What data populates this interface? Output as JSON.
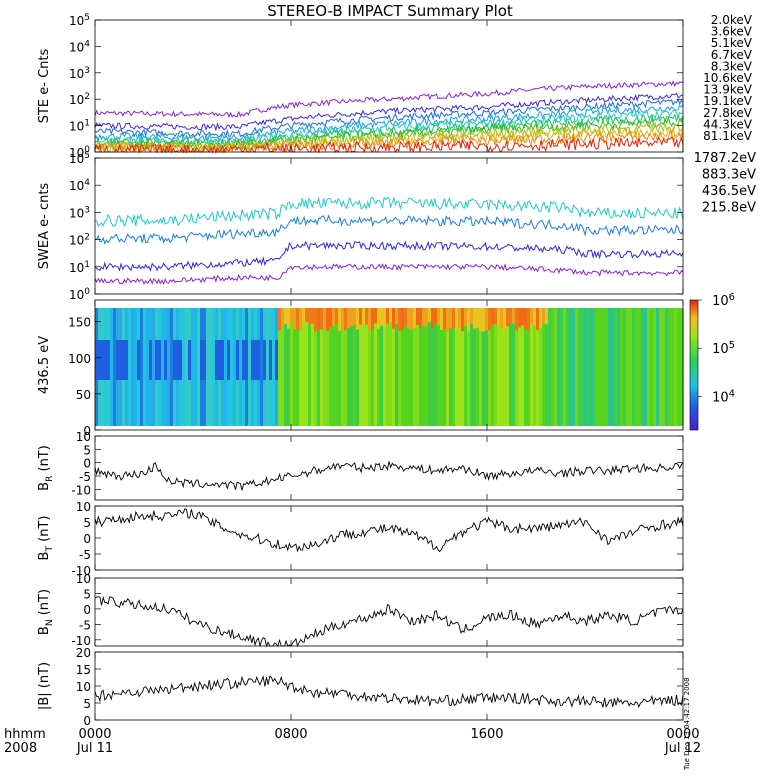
{
  "title": "STEREO-B IMPACT Summary Plot",
  "side_stamp": "Tue Dec 13 04:42:17 2008",
  "chart_data": [
    {
      "type": "line",
      "panel": "ste",
      "ylabel": "STE e- Cnts",
      "yscale": "log",
      "ylim": [
        1,
        100000
      ],
      "yticks": [
        {
          "v": 1,
          "b": "10",
          "e": "0"
        },
        {
          "v": 10,
          "b": "10",
          "e": "1"
        },
        {
          "v": 100,
          "b": "10",
          "e": "2"
        },
        {
          "v": 1000,
          "b": "10",
          "e": "3"
        },
        {
          "v": 10000,
          "b": "10",
          "e": "4"
        },
        {
          "v": 100000,
          "b": "10",
          "e": "5"
        }
      ],
      "series": [
        {
          "name": "2.0keV",
          "color": "#8b23c9",
          "x": [
            0,
            4,
            6,
            8,
            12,
            16,
            20,
            24
          ],
          "y": [
            30,
            27,
            26,
            60,
            100,
            160,
            300,
            400
          ]
        },
        {
          "name": "3.6keV",
          "color": "#3b2bd6",
          "x": [
            0,
            4,
            6,
            8,
            12,
            16,
            20,
            24
          ],
          "y": [
            10,
            9,
            9,
            18,
            35,
            50,
            90,
            140
          ]
        },
        {
          "name": "5.1keV",
          "color": "#1c6bd8",
          "x": [
            0,
            4,
            6,
            8,
            12,
            16,
            20,
            24
          ],
          "y": [
            6,
            5,
            5,
            10,
            20,
            30,
            50,
            80
          ]
        },
        {
          "name": "6.7keV",
          "color": "#1aa0de",
          "x": [
            0,
            4,
            6,
            8,
            12,
            16,
            20,
            24
          ],
          "y": [
            4,
            3.5,
            3.5,
            6,
            12,
            18,
            30,
            50
          ]
        },
        {
          "name": "8.3keV",
          "color": "#20c9c0",
          "x": [
            0,
            4,
            6,
            8,
            12,
            16,
            20,
            24
          ],
          "y": [
            3,
            2.6,
            2.6,
            4.5,
            8,
            12,
            20,
            30
          ]
        },
        {
          "name": "10.6keV",
          "color": "#1fc46a",
          "x": [
            0,
            4,
            6,
            8,
            12,
            16,
            20,
            24
          ],
          "y": [
            2.5,
            2.2,
            2.2,
            3.5,
            6,
            9,
            14,
            20
          ]
        },
        {
          "name": "13.9keV",
          "color": "#33b91e",
          "x": [
            0,
            4,
            6,
            8,
            12,
            16,
            20,
            24
          ],
          "y": [
            2,
            1.9,
            1.9,
            2.8,
            4.5,
            7,
            10,
            14
          ]
        },
        {
          "name": "19.1keV",
          "color": "#a6c31a",
          "x": [
            0,
            4,
            6,
            8,
            12,
            16,
            20,
            24
          ],
          "y": [
            1.8,
            1.7,
            1.7,
            2.3,
            3.5,
            5,
            7,
            9
          ]
        },
        {
          "name": "27.8keV",
          "color": "#d9b616",
          "x": [
            0,
            4,
            6,
            8,
            12,
            16,
            20,
            24
          ],
          "y": [
            1.6,
            1.5,
            1.5,
            1.9,
            2.7,
            3.6,
            5,
            6
          ]
        },
        {
          "name": "44.3keV",
          "color": "#ee8a14",
          "x": [
            0,
            4,
            6,
            8,
            12,
            16,
            20,
            24
          ],
          "y": [
            1.4,
            1.3,
            1.4,
            1.6,
            2.1,
            2.6,
            3.4,
            4
          ]
        },
        {
          "name": "81.1keV",
          "color": "#e0250f",
          "x": [
            0,
            4,
            6,
            8,
            12,
            16,
            20,
            24
          ],
          "y": [
            1.2,
            1.15,
            1.3,
            1.3,
            1.5,
            1.7,
            2,
            2.2
          ]
        }
      ]
    },
    {
      "type": "line",
      "panel": "swea",
      "ylabel": "SWEA e- cnts",
      "yscale": "log",
      "ylim": [
        1,
        100000
      ],
      "yticks": [
        {
          "v": 1,
          "b": "10",
          "e": "0"
        },
        {
          "v": 10,
          "b": "10",
          "e": "1"
        },
        {
          "v": 100,
          "b": "10",
          "e": "2"
        },
        {
          "v": 1000,
          "b": "10",
          "e": "3"
        },
        {
          "v": 10000,
          "b": "10",
          "e": "4"
        },
        {
          "v": 100000,
          "b": "10",
          "e": "5"
        }
      ],
      "series": [
        {
          "name": "1787.2eV",
          "color": "#8b23c9",
          "x": [
            0,
            3,
            6,
            7.5,
            8,
            12,
            16,
            19.5,
            20,
            24
          ],
          "y": [
            3,
            3,
            4,
            4,
            10,
            10,
            10,
            7,
            6,
            6
          ]
        },
        {
          "name": "883.3eV",
          "color": "#2a2bd6",
          "x": [
            0,
            3,
            6,
            7.5,
            8,
            12,
            16,
            19.5,
            20,
            24
          ],
          "y": [
            10,
            10,
            14,
            16,
            60,
            60,
            55,
            40,
            30,
            30
          ]
        },
        {
          "name": "436.5eV",
          "color": "#1f7fd8",
          "x": [
            0,
            3,
            6,
            7.5,
            8,
            12,
            16,
            19.5,
            20,
            24
          ],
          "y": [
            110,
            110,
            170,
            200,
            500,
            500,
            450,
            320,
            220,
            220
          ]
        },
        {
          "name": "215.8eV",
          "color": "#24c9c4",
          "x": [
            0,
            3,
            6,
            7.5,
            8,
            12,
            16,
            19.5,
            20,
            24
          ],
          "y": [
            500,
            500,
            800,
            900,
            2100,
            2200,
            1900,
            1400,
            900,
            900
          ]
        }
      ]
    },
    {
      "type": "heatmap",
      "panel": "spectrogram",
      "ylabel": "436.5 eV",
      "ylim": [
        0,
        180
      ],
      "yticks": [
        0,
        50,
        100,
        150
      ],
      "colorbar": {
        "scale": "log",
        "range": [
          2000,
          1000000
        ],
        "ticks": [
          {
            "v": 10000,
            "b": "10",
            "e": "4"
          },
          {
            "v": 100000,
            "b": "10",
            "e": "5"
          },
          {
            "v": 1000000,
            "b": "10",
            "e": "6"
          }
        ]
      },
      "regions": [
        {
          "x": [
            0,
            7.5
          ],
          "level": "low"
        },
        {
          "x": [
            7.5,
            18.5
          ],
          "level": "high"
        },
        {
          "x": [
            18.5,
            24
          ],
          "level": "medium"
        }
      ]
    },
    {
      "type": "line",
      "panel": "br",
      "ylabel": "B",
      "ylabel_sub": "R",
      "ylabel_unit": "(nT)",
      "ylim": [
        -14,
        10
      ],
      "yticks": [
        -10,
        -5,
        0,
        5,
        10
      ],
      "series": [
        {
          "name": "BR",
          "color": "#000000",
          "x": [
            0,
            1,
            2,
            2.5,
            3,
            4,
            5,
            6,
            7,
            8,
            9,
            10,
            11,
            12,
            13,
            14,
            15,
            16,
            17,
            18,
            19,
            20,
            21,
            22,
            23,
            24
          ],
          "y": [
            -3,
            -5,
            -4,
            -1,
            -7,
            -8,
            -8,
            -9,
            -7,
            -5,
            -3,
            -1,
            -2,
            -1,
            -2,
            -3,
            -2,
            -5,
            -4,
            -3,
            -4,
            -3,
            -3,
            -2,
            -2,
            -1
          ]
        }
      ]
    },
    {
      "type": "line",
      "panel": "bt",
      "ylabel": "B",
      "ylabel_sub": "T",
      "ylabel_unit": "(nT)",
      "ylim": [
        -10,
        10
      ],
      "yticks": [
        -10,
        -5,
        0,
        5,
        10
      ],
      "series": [
        {
          "name": "BT",
          "color": "#000000",
          "x": [
            0,
            1,
            2,
            3,
            4,
            5,
            6,
            7,
            8,
            9,
            10,
            11,
            12,
            13,
            14,
            15,
            16,
            17,
            18,
            19,
            20,
            21,
            22,
            23,
            24
          ],
          "y": [
            5,
            6,
            7,
            7,
            8,
            4,
            1,
            -1,
            -3,
            -2,
            1,
            2,
            3,
            1,
            -3,
            2,
            5,
            3,
            3,
            4,
            5,
            -1,
            2,
            4,
            5
          ]
        }
      ]
    },
    {
      "type": "line",
      "panel": "bn",
      "ylabel": "B",
      "ylabel_sub": "N",
      "ylabel_unit": "(nT)",
      "ylim": [
        -12,
        10
      ],
      "yticks": [
        -10,
        -5,
        0,
        5,
        10
      ],
      "series": [
        {
          "name": "BN",
          "color": "#000000",
          "x": [
            0,
            1,
            2,
            3,
            4,
            5,
            6,
            7,
            8,
            9,
            10,
            11,
            12,
            13,
            14,
            15,
            16,
            17,
            18,
            19,
            20,
            21,
            22,
            23,
            24
          ],
          "y": [
            3,
            2,
            1,
            0,
            -4,
            -7,
            -9,
            -11,
            -12,
            -8,
            -5,
            -3,
            0,
            -4,
            -2,
            -7,
            -3,
            -2,
            -5,
            -2,
            -4,
            -2,
            -4,
            -1,
            0
          ]
        }
      ]
    },
    {
      "type": "line",
      "panel": "bmag",
      "ylabel": "|B| (nT)",
      "ylim": [
        0,
        20
      ],
      "yticks": [
        0,
        5,
        10,
        15,
        20
      ],
      "series": [
        {
          "name": "|B|",
          "color": "#000000",
          "x": [
            0,
            1,
            2,
            3,
            4,
            5,
            6,
            7,
            7.5,
            8,
            9,
            10,
            11,
            12,
            13,
            14,
            15,
            16,
            17,
            18,
            19,
            20,
            21,
            22,
            23,
            24
          ],
          "y": [
            7,
            8,
            8.5,
            9,
            10,
            10.5,
            11,
            11.5,
            11.5,
            10,
            8,
            8,
            7,
            6.5,
            6,
            5.5,
            6,
            6.5,
            6.5,
            6,
            5.5,
            5.5,
            5,
            5,
            5.5,
            6
          ]
        }
      ]
    }
  ],
  "xaxis": {
    "range": [
      0,
      24
    ],
    "ticks": [
      {
        "x": 0,
        "label": "0000",
        "sub": "Jul 11"
      },
      {
        "x": 8,
        "label": "0800",
        "sub": ""
      },
      {
        "x": 16,
        "label": "1600",
        "sub": ""
      },
      {
        "x": 24,
        "label": "0000",
        "sub": "Jul 12"
      }
    ],
    "corner_label": "hhmm",
    "corner_sub": "2008"
  }
}
